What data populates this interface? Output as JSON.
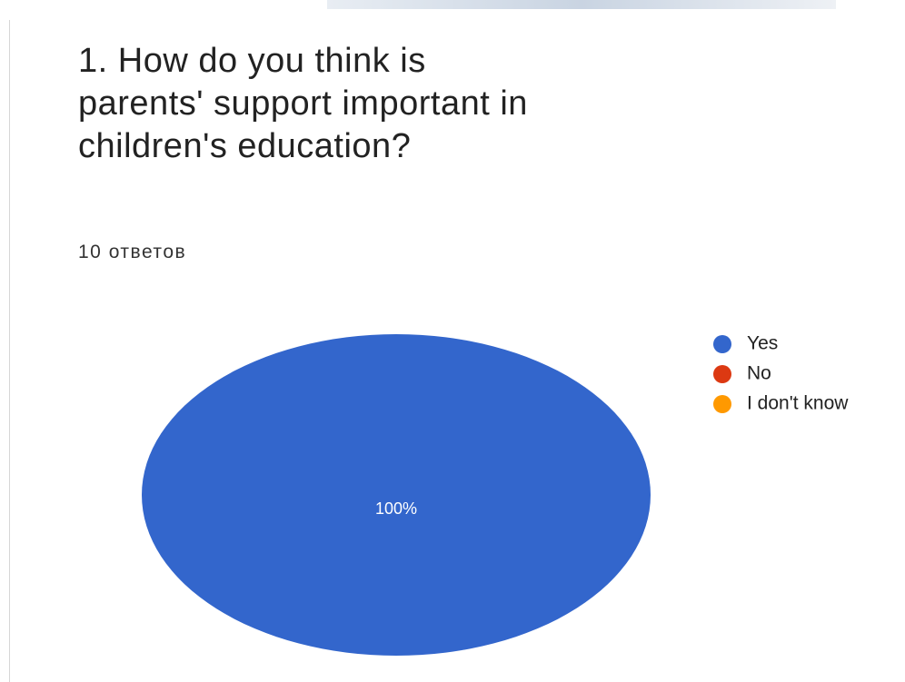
{
  "chart_data": {
    "type": "pie",
    "title": "1. How do you think is parents' support important in children's education?",
    "subtitle": "10 ответов",
    "categories": [
      "Yes",
      "No",
      "I don't know"
    ],
    "series": [
      {
        "colors": [
          "#3366cc",
          "#dc3912",
          "#ff9900"
        ],
        "values": [
          100,
          0,
          0
        ],
        "value_labels": [
          "100%",
          null,
          null
        ]
      }
    ],
    "legend": "right"
  }
}
